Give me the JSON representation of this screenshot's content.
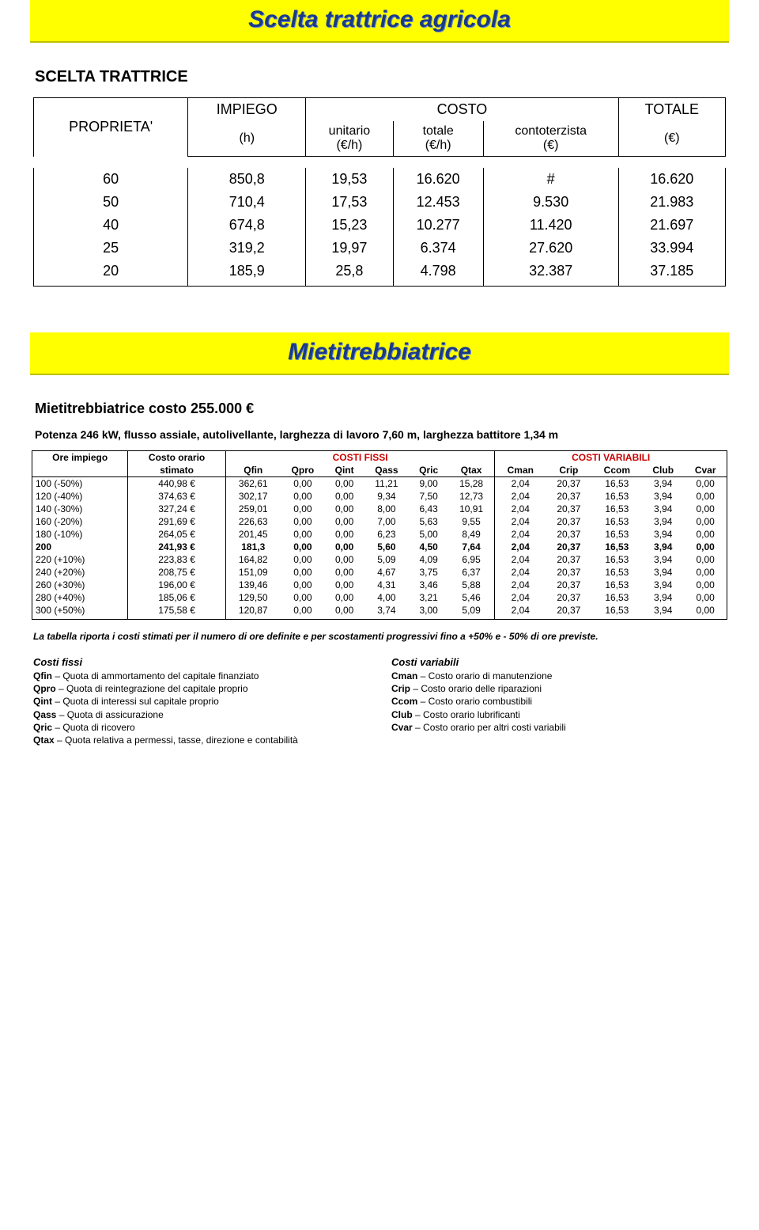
{
  "page1": {
    "title": "Scelta trattrice agricola",
    "subtitle": "SCELTA TRATTRICE",
    "header": {
      "proprieta": "PROPRIETA'",
      "impiego": "IMPIEGO",
      "impiego_sub": "(h)",
      "costo": "COSTO",
      "unitario": "unitario",
      "unitario_sub": "(€/h)",
      "totale": "totale",
      "totale_sub": "(€/h)",
      "contoterzista": "contoterzista",
      "contoterzista_sub": "(€)",
      "totale_col": "TOTALE",
      "totale_col_sub": "(€)"
    },
    "rows": [
      {
        "p": "60",
        "i": "850,8",
        "u": "19,53",
        "t": "16.620",
        "c": "#",
        "tot": "16.620"
      },
      {
        "p": "50",
        "i": "710,4",
        "u": "17,53",
        "t": "12.453",
        "c": "9.530",
        "tot": "21.983"
      },
      {
        "p": "40",
        "i": "674,8",
        "u": "15,23",
        "t": "10.277",
        "c": "11.420",
        "tot": "21.697"
      },
      {
        "p": "25",
        "i": "319,2",
        "u": "19,97",
        "t": "6.374",
        "c": "27.620",
        "tot": "33.994"
      },
      {
        "p": "20",
        "i": "185,9",
        "u": "25,8",
        "t": "4.798",
        "c": "32.387",
        "tot": "37.185"
      }
    ]
  },
  "page2": {
    "title": "Mietitrebbiatrice",
    "subtitle": "Mietitrebbiatrice  costo 255.000 €",
    "desc": "Potenza 246 kW,  flusso assiale,  autolivellante, larghezza di lavoro 7,60 m, larghezza battitore 1,34 m",
    "grp_fissi": "COSTI FISSI",
    "grp_var": "COSTI VARIABILI",
    "cols": {
      "ore": "Ore impiego",
      "costo": "Costo orario",
      "stimato": "stimato",
      "qfin": "Qfin",
      "qpro": "Qpro",
      "qint": "Qint",
      "qass": "Qass",
      "qric": "Qric",
      "qtax": "Qtax",
      "cman": "Cman",
      "crip": "Crip",
      "ccom": "Ccom",
      "club": "Club",
      "cvar": "Cvar"
    },
    "rows": [
      {
        "ore": "100 (-50%)",
        "costo": "440,98 €",
        "qfin": "362,61",
        "qpro": "0,00",
        "qint": "0,00",
        "qass": "11,21",
        "qric": "9,00",
        "qtax": "15,28",
        "cman": "2,04",
        "crip": "20,37",
        "ccom": "16,53",
        "club": "3,94",
        "cvar": "0,00"
      },
      {
        "ore": "120 (-40%)",
        "costo": "374,63 €",
        "qfin": "302,17",
        "qpro": "0,00",
        "qint": "0,00",
        "qass": "9,34",
        "qric": "7,50",
        "qtax": "12,73",
        "cman": "2,04",
        "crip": "20,37",
        "ccom": "16,53",
        "club": "3,94",
        "cvar": "0,00"
      },
      {
        "ore": "140 (-30%)",
        "costo": "327,24 €",
        "qfin": "259,01",
        "qpro": "0,00",
        "qint": "0,00",
        "qass": "8,00",
        "qric": "6,43",
        "qtax": "10,91",
        "cman": "2,04",
        "crip": "20,37",
        "ccom": "16,53",
        "club": "3,94",
        "cvar": "0,00"
      },
      {
        "ore": "160 (-20%)",
        "costo": "291,69 €",
        "qfin": "226,63",
        "qpro": "0,00",
        "qint": "0,00",
        "qass": "7,00",
        "qric": "5,63",
        "qtax": "9,55",
        "cman": "2,04",
        "crip": "20,37",
        "ccom": "16,53",
        "club": "3,94",
        "cvar": "0,00"
      },
      {
        "ore": "180 (-10%)",
        "costo": "264,05 €",
        "qfin": "201,45",
        "qpro": "0,00",
        "qint": "0,00",
        "qass": "6,23",
        "qric": "5,00",
        "qtax": "8,49",
        "cman": "2,04",
        "crip": "20,37",
        "ccom": "16,53",
        "club": "3,94",
        "cvar": "0,00"
      },
      {
        "ore": "200",
        "costo": "241,93 €",
        "qfin": "181,3",
        "qpro": "0,00",
        "qint": "0,00",
        "qass": "5,60",
        "qric": "4,50",
        "qtax": "7,64",
        "cman": "2,04",
        "crip": "20,37",
        "ccom": "16,53",
        "club": "3,94",
        "cvar": "0,00",
        "bold": true
      },
      {
        "ore": "220 (+10%)",
        "costo": "223,83 €",
        "qfin": "164,82",
        "qpro": "0,00",
        "qint": "0,00",
        "qass": "5,09",
        "qric": "4,09",
        "qtax": "6,95",
        "cman": "2,04",
        "crip": "20,37",
        "ccom": "16,53",
        "club": "3,94",
        "cvar": "0,00"
      },
      {
        "ore": "240 (+20%)",
        "costo": "208,75 €",
        "qfin": "151,09",
        "qpro": "0,00",
        "qint": "0,00",
        "qass": "4,67",
        "qric": "3,75",
        "qtax": "6,37",
        "cman": "2,04",
        "crip": "20,37",
        "ccom": "16,53",
        "club": "3,94",
        "cvar": "0,00"
      },
      {
        "ore": "260 (+30%)",
        "costo": "196,00 €",
        "qfin": "139,46",
        "qpro": "0,00",
        "qint": "0,00",
        "qass": "4,31",
        "qric": "3,46",
        "qtax": "5,88",
        "cman": "2,04",
        "crip": "20,37",
        "ccom": "16,53",
        "club": "3,94",
        "cvar": "0,00"
      },
      {
        "ore": "280 (+40%)",
        "costo": "185,06 €",
        "qfin": "129,50",
        "qpro": "0,00",
        "qint": "0,00",
        "qass": "4,00",
        "qric": "3,21",
        "qtax": "5,46",
        "cman": "2,04",
        "crip": "20,37",
        "ccom": "16,53",
        "club": "3,94",
        "cvar": "0,00"
      },
      {
        "ore": "300 (+50%)",
        "costo": "175,58 €",
        "qfin": "120,87",
        "qpro": "0,00",
        "qint": "0,00",
        "qass": "3,74",
        "qric": "3,00",
        "qtax": "5,09",
        "cman": "2,04",
        "crip": "20,37",
        "ccom": "16,53",
        "club": "3,94",
        "cvar": "0,00"
      }
    ],
    "footnote": "La tabella riporta i costi stimati per il numero di ore definite e per scostamenti progressivi fino a +50% e - 50% di ore previste.",
    "legend": {
      "fissi_title": "Costi fissi",
      "fissi": [
        {
          "k": "Qfin",
          "v": " – Quota di ammortamento del capitale finanziato"
        },
        {
          "k": "Qpro",
          "v": " – Quota di reintegrazione del capitale proprio"
        },
        {
          "k": "Qint",
          "v": " – Quota di interessi sul capitale proprio"
        },
        {
          "k": "Qass",
          "v": " – Quota di assicurazione"
        },
        {
          "k": "Qric",
          "v": " – Quota di ricovero"
        },
        {
          "k": "Qtax",
          "v": " – Quota relativa a permessi, tasse, direzione e contabilità"
        }
      ],
      "var_title": "Costi variabili",
      "var": [
        {
          "k": "Cman",
          "v": " – Costo orario di manutenzione"
        },
        {
          "k": "Crip",
          "v": " – Costo orario delle riparazioni"
        },
        {
          "k": "Ccom",
          "v": " – Costo orario combustibili"
        },
        {
          "k": "Club",
          "v": " – Costo orario lubrificanti"
        },
        {
          "k": "Cvar",
          "v": " – Costo orario per altri costi variabili"
        }
      ]
    }
  }
}
